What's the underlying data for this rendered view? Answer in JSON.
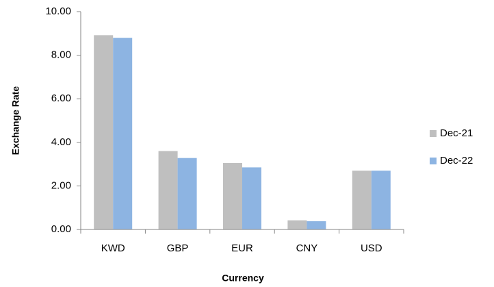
{
  "chart_data": {
    "type": "bar",
    "categories": [
      "KWD",
      "GBP",
      "EUR",
      "CNY",
      "USD"
    ],
    "series": [
      {
        "name": "Dec-21",
        "color": "#bfbfbf",
        "values": [
          8.92,
          3.6,
          3.05,
          0.42,
          2.7
        ]
      },
      {
        "name": "Dec-22",
        "color": "#8db4e2",
        "values": [
          8.8,
          3.28,
          2.85,
          0.38,
          2.7
        ]
      }
    ],
    "xlabel": "Currency",
    "ylabel": "Exchange Rate",
    "ylim": [
      0,
      10
    ],
    "yticks": [
      {
        "value": 0,
        "label": "0.00"
      },
      {
        "value": 2,
        "label": "2.00"
      },
      {
        "value": 4,
        "label": "4.00"
      },
      {
        "value": 6,
        "label": "6.00"
      },
      {
        "value": 8,
        "label": "8.00"
      },
      {
        "value": 10,
        "label": "10.00"
      }
    ],
    "grid": false,
    "legend": "right"
  }
}
